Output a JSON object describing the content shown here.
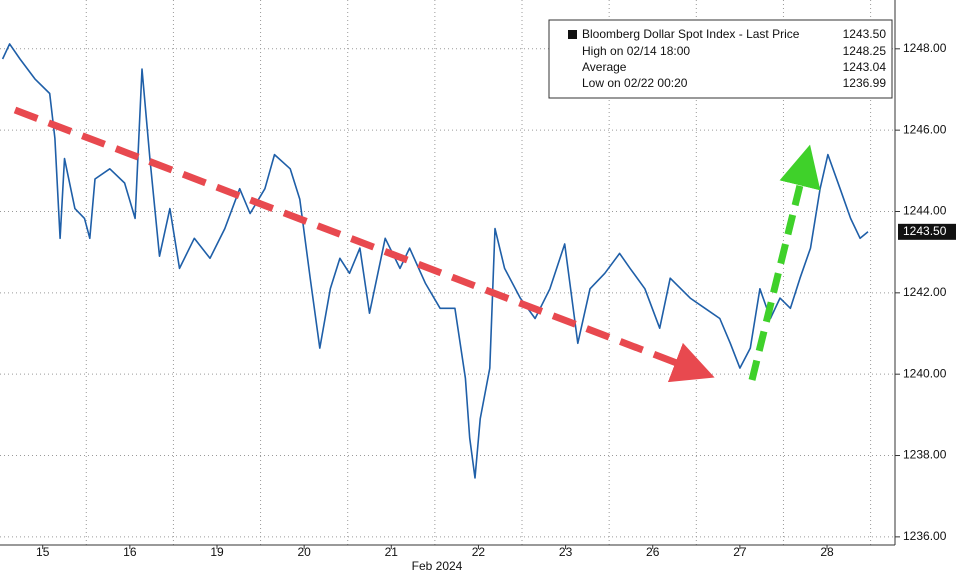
{
  "chart_data": {
    "type": "line",
    "legend": {
      "title": "Bloomberg Dollar Spot Index - Last Price",
      "last": "1243.50",
      "rows": [
        {
          "label": "High on 02/14 18:00",
          "value": "1248.25"
        },
        {
          "label": "Average",
          "value": "1243.04"
        },
        {
          "label": "Low on 02/22 00:20",
          "value": "1236.99"
        }
      ]
    },
    "last_price_label": "1243.50",
    "xlabel": "Feb 2024",
    "xlim": [
      -0.49,
      9.78
    ],
    "xticks": [
      {
        "value": 0,
        "label": "15"
      },
      {
        "value": 1,
        "label": "16"
      },
      {
        "value": 2,
        "label": "19"
      },
      {
        "value": 3,
        "label": "20"
      },
      {
        "value": 4,
        "label": "21"
      },
      {
        "value": 5,
        "label": "22"
      },
      {
        "value": 6,
        "label": "23"
      },
      {
        "value": 7,
        "label": "26"
      },
      {
        "value": 8,
        "label": "27"
      },
      {
        "value": 9,
        "label": "28"
      }
    ],
    "ylim": [
      1235.8,
      1249.2
    ],
    "yticks": [
      {
        "value": 1236,
        "label": "1236.00"
      },
      {
        "value": 1238,
        "label": "1238.00"
      },
      {
        "value": 1240,
        "label": "1240.00"
      },
      {
        "value": 1242,
        "label": "1242.00"
      },
      {
        "value": 1244,
        "label": "1244.00"
      },
      {
        "value": 1246,
        "label": "1246.00"
      },
      {
        "value": 1248,
        "label": "1248.00"
      }
    ],
    "grid": true,
    "series": [
      {
        "name": "Bloomberg Dollar Spot Index",
        "color": "#1f5fa8",
        "x": [
          -0.46,
          -0.38,
          -0.26,
          -0.09,
          0.08,
          0.14,
          0.2,
          0.25,
          0.37,
          0.48,
          0.54,
          0.6,
          0.77,
          0.94,
          1.06,
          1.14,
          1.23,
          1.34,
          1.46,
          1.57,
          1.74,
          1.92,
          2.09,
          2.26,
          2.38,
          2.55,
          2.66,
          2.84,
          2.95,
          3.07,
          3.18,
          3.3,
          3.41,
          3.52,
          3.64,
          3.75,
          3.93,
          4.1,
          4.21,
          4.39,
          4.56,
          4.73,
          4.85,
          4.9,
          4.96,
          5.02,
          5.13,
          5.19,
          5.3,
          5.48,
          5.65,
          5.82,
          5.99,
          6.14,
          6.28,
          6.45,
          6.62,
          6.74,
          6.91,
          7.08,
          7.2,
          7.43,
          7.6,
          7.77,
          7.89,
          8.0,
          8.12,
          8.23,
          8.35,
          8.46,
          8.58,
          8.69,
          8.81,
          8.92,
          9.01,
          9.15,
          9.27,
          9.38,
          9.47
        ],
        "values": [
          1247.75,
          1248.12,
          1247.75,
          1247.26,
          1246.9,
          1245.8,
          1243.34,
          1245.3,
          1244.07,
          1243.83,
          1243.34,
          1244.8,
          1245.05,
          1244.7,
          1243.83,
          1247.5,
          1245.3,
          1242.9,
          1244.07,
          1242.6,
          1243.34,
          1242.85,
          1243.58,
          1244.56,
          1243.95,
          1244.56,
          1245.4,
          1245.05,
          1244.3,
          1242.36,
          1240.64,
          1242.1,
          1242.85,
          1242.48,
          1243.1,
          1241.5,
          1243.34,
          1242.6,
          1243.1,
          1242.24,
          1241.62,
          1241.62,
          1239.9,
          1238.43,
          1237.45,
          1238.9,
          1240.15,
          1243.58,
          1242.6,
          1241.87,
          1241.37,
          1242.1,
          1243.2,
          1240.76,
          1242.1,
          1242.48,
          1242.97,
          1242.6,
          1242.1,
          1241.13,
          1242.36,
          1241.87,
          1241.62,
          1241.37,
          1240.76,
          1240.15,
          1240.64,
          1242.1,
          1241.37,
          1241.87,
          1241.62,
          1242.36,
          1243.1,
          1244.56,
          1245.4,
          1244.56,
          1243.83,
          1243.34,
          1243.5
        ]
      }
    ]
  }
}
